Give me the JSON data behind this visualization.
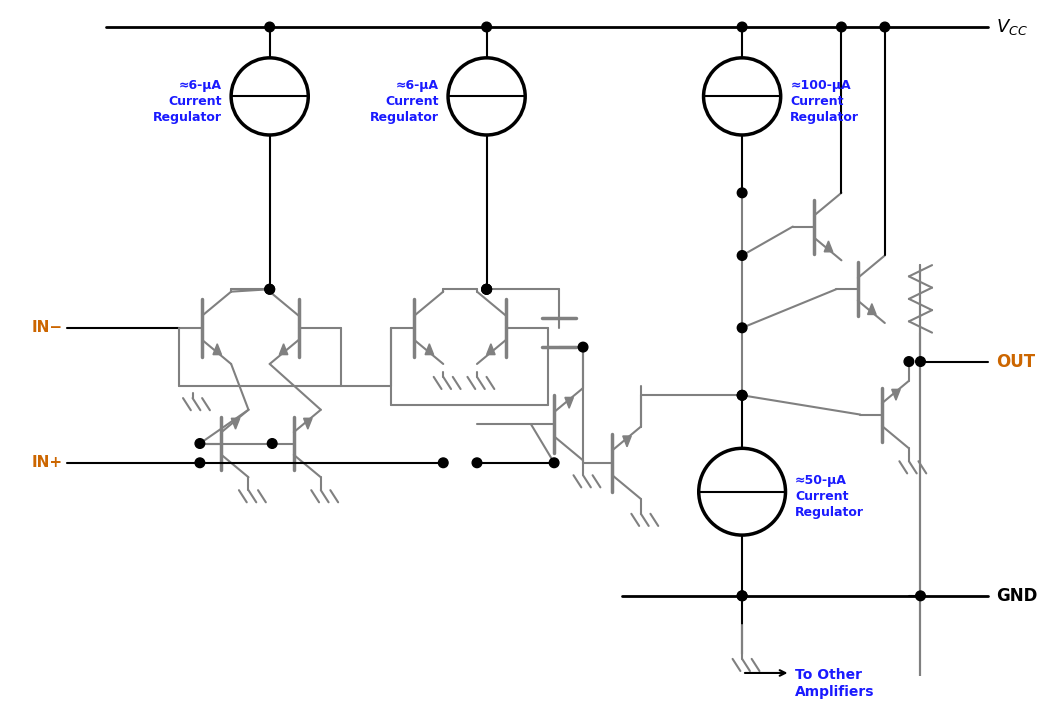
{
  "bg": "#ffffff",
  "bk": "#000000",
  "gr": "#808080",
  "blue": "#1a1aff",
  "orange": "#cc6600",
  "cr1_text": "≈6-μA\nCurrent\nRegulator",
  "cr2_text": "≈6-μA\nCurrent\nRegulator",
  "cr3_text": "≈100-μA\nCurrent\nRegulator",
  "cr4_text": "≈50-μA\nCurrent\nRegulator",
  "in_minus": "IN−",
  "in_plus": "IN+",
  "out_label": "OUT",
  "gnd_label": "GND",
  "vcc_label": "$V_{CC}$",
  "to_other": "To Other\nAmplifiers"
}
